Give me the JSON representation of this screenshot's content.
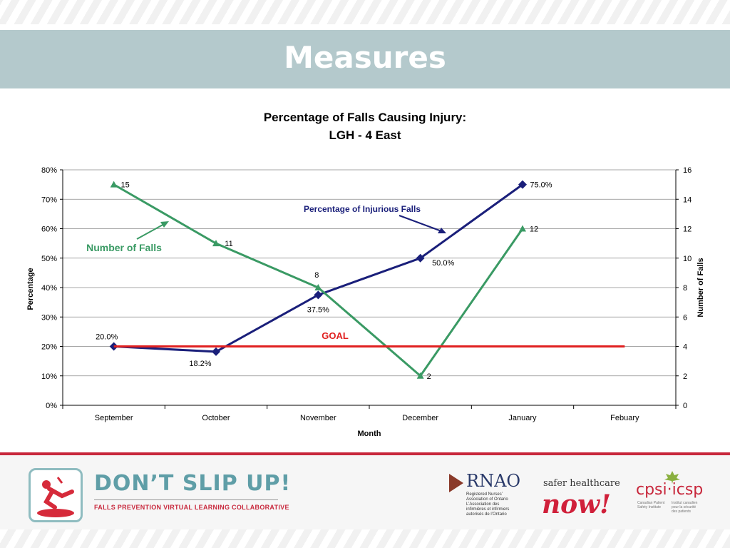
{
  "slide": {
    "title": "Measures"
  },
  "chart_data": {
    "type": "line",
    "title": "Percentage of Falls Causing Injury:",
    "subtitle": "LGH - 4 East",
    "xlabel": "Month",
    "ylabel": "Percentage",
    "y2label": "Number of Falls",
    "categories": [
      "September",
      "October",
      "November",
      "December",
      "January",
      "Febuary"
    ],
    "ylim": [
      0,
      80
    ],
    "y_ticks": [
      0,
      10,
      20,
      30,
      40,
      50,
      60,
      70,
      80
    ],
    "y_tick_suffix": "%",
    "y2lim": [
      0,
      16
    ],
    "y2_ticks": [
      0,
      2,
      4,
      6,
      8,
      10,
      12,
      14,
      16
    ],
    "grid": true,
    "legend": "none",
    "series": [
      {
        "name": "Percentage of Injurious Falls",
        "axis": "left",
        "color": "#1a1f7a",
        "marker": "diamond",
        "values": [
          20.0,
          18.2,
          37.5,
          50.0,
          75.0,
          null
        ],
        "labels": [
          "20.0%",
          "18.2%",
          "37.5%",
          "50.0%",
          "75.0%",
          ""
        ]
      },
      {
        "name": "Number of Falls",
        "axis": "right",
        "color": "#3a9a64",
        "marker": "triangle",
        "values": [
          15,
          11,
          8,
          2,
          12,
          null
        ],
        "labels": [
          "15",
          "11",
          "8",
          "2",
          "12",
          ""
        ]
      },
      {
        "name": "GOAL",
        "axis": "left",
        "color": "#e02020",
        "marker": "none",
        "values": [
          20,
          20,
          20,
          20,
          20,
          20
        ],
        "labels": [
          "",
          "",
          "",
          "",
          "",
          ""
        ]
      }
    ],
    "annotations": {
      "pct_label": "Percentage of Injurious Falls",
      "falls_label": "Number of Falls",
      "goal_label": "GOAL"
    }
  },
  "footer": {
    "brand_title": "DON’T SLIP UP!",
    "brand_subtitle": "FALLS PREVENTION VIRTUAL LEARNING COLLABORATIVE",
    "rnao_name": "RNAO",
    "rnao_line1": "Registered Nurses’",
    "rnao_line2": "Association of Ontario",
    "rnao_line3": "L’Association des",
    "rnao_line4": "infirmières et infirmiers",
    "rnao_line5": "autorisés de l’Ontario",
    "shn_top": "safer healthcare",
    "shn_now": "now!",
    "cpsi_name": "cpsi·icsp",
    "cpsi_en": "Canadian Patient Safety Institute",
    "cpsi_fr": "Institut canadien pour la sécurité des patients"
  }
}
